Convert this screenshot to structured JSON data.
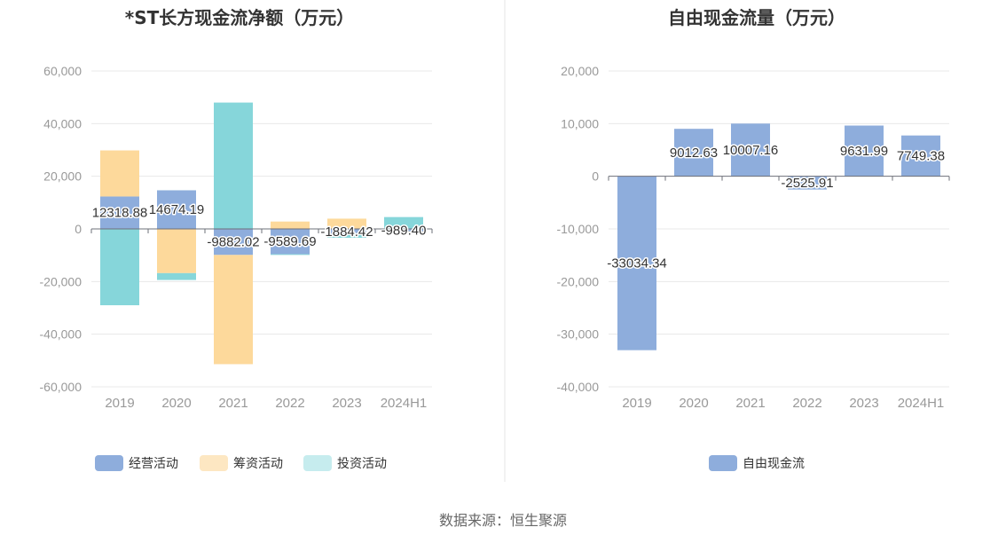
{
  "source": "数据来源：恒生聚源",
  "chart_data": [
    {
      "type": "bar",
      "stacked": true,
      "title": "*ST长方现金流净额（万元）",
      "categories": [
        "2019",
        "2020",
        "2021",
        "2022",
        "2023",
        "2024H1"
      ],
      "ylim": [
        -60000,
        60000
      ],
      "yticks": [
        60000,
        40000,
        20000,
        0,
        -20000,
        -40000,
        -60000
      ],
      "ytick_labels": [
        "60,000",
        "40,000",
        "20,000",
        "0",
        "-20,000",
        "-40,000",
        "-60,000"
      ],
      "grid": true,
      "legend": "bottom",
      "series": [
        {
          "name": "经营活动",
          "color": "#8EADDC",
          "values": [
            12318.88,
            14674.19,
            -9882.02,
            -9589.69,
            -1884.42,
            -989.4
          ],
          "labels": [
            "12318.88",
            "14674.19",
            "-9882.02",
            "-9589.69",
            "-1884.42",
            "-989.40"
          ]
        },
        {
          "name": "筹资活动",
          "color": "#FDD99B",
          "values": [
            17500,
            -16800,
            -41500,
            2800,
            3900,
            -150
          ],
          "labels": [
            "",
            "",
            "",
            "",
            "",
            ""
          ]
        },
        {
          "name": "投资活动",
          "color": "#86D6DA",
          "values": [
            -29000,
            -2600,
            48000,
            -300,
            -1500,
            4500
          ],
          "labels": [
            "",
            "",
            "",
            "",
            "",
            ""
          ]
        }
      ],
      "legend_colors": [
        "#8EADDC",
        "#FDE7C2",
        "#C6ECEE"
      ]
    },
    {
      "type": "bar",
      "title": "自由现金流量（万元）",
      "categories": [
        "2019",
        "2020",
        "2021",
        "2022",
        "2023",
        "2024H1"
      ],
      "ylim": [
        -40000,
        20000
      ],
      "yticks": [
        20000,
        10000,
        0,
        -10000,
        -20000,
        -30000,
        -40000
      ],
      "ytick_labels": [
        "20,000",
        "10,000",
        "0",
        "-10,000",
        "-20,000",
        "-30,000",
        "-40,000"
      ],
      "grid": true,
      "legend": "bottom",
      "series": [
        {
          "name": "自由现金流",
          "color": "#8EADDC",
          "values": [
            -33034.34,
            9012.63,
            10007.16,
            -2525.91,
            9631.99,
            7749.38
          ],
          "labels": [
            "-33034.34",
            "9012.63",
            "10007.16",
            "-2525.91",
            "9631.99",
            "7749.38"
          ]
        }
      ],
      "legend_colors": [
        "#8EADDC"
      ]
    }
  ]
}
